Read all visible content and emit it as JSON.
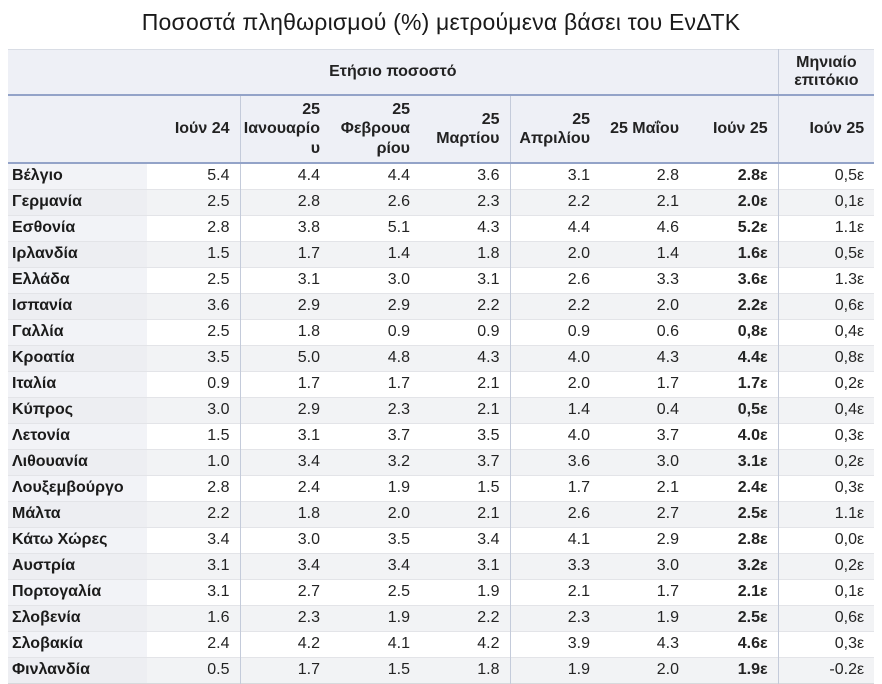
{
  "title": "Ποσοστά πληθωρισμού (%) μετρούμενα βάσει του ΕνΔΤΚ",
  "colors": {
    "header_bg": "#eef0f6",
    "blue_rule": "#93a3c8",
    "group_separator": "#c4cbda",
    "row_stripe": "#f2f3f5",
    "row_header_bg": "#f2f3f7"
  },
  "chart_data": {
    "type": "table",
    "title": "Ποσοστά πληθωρισμού (%) μετρούμενα βάσει του ΕνΔΤΚ",
    "group_headers": [
      "Ετήσιο ποσοστό",
      "Μηνιαίο επιτόκιο"
    ],
    "columns": [
      "Ιούν 24",
      "25 Ιανουαρίου",
      "25 Φεβρουαρίου",
      "25 Μαρτίου",
      "25 Απριλίου",
      "25 Μαΐου",
      "Ιούν 25"
    ],
    "monthly_column": "Ιούν 25",
    "rows": [
      {
        "country": "Βέλγιο",
        "annual": [
          "5.4",
          "4.4",
          "4.4",
          "3.6",
          "3.1",
          "2.8",
          "2.8ε"
        ],
        "monthly": "0,5ε"
      },
      {
        "country": "Γερμανία",
        "annual": [
          "2.5",
          "2.8",
          "2.6",
          "2.3",
          "2.2",
          "2.1",
          "2.0ε"
        ],
        "monthly": "0,1ε"
      },
      {
        "country": "Εσθονία",
        "annual": [
          "2.8",
          "3.8",
          "5.1",
          "4.3",
          "4.4",
          "4.6",
          "5.2ε"
        ],
        "monthly": "1.1ε"
      },
      {
        "country": "Ιρλανδία",
        "annual": [
          "1.5",
          "1.7",
          "1.4",
          "1.8",
          "2.0",
          "1.4",
          "1.6ε"
        ],
        "monthly": "0,5ε"
      },
      {
        "country": "Ελλάδα",
        "annual": [
          "2.5",
          "3.1",
          "3.0",
          "3.1",
          "2.6",
          "3.3",
          "3.6ε"
        ],
        "monthly": "1.3ε"
      },
      {
        "country": "Ισπανία",
        "annual": [
          "3.6",
          "2.9",
          "2.9",
          "2.2",
          "2.2",
          "2.0",
          "2.2ε"
        ],
        "monthly": "0,6ε"
      },
      {
        "country": "Γαλλία",
        "annual": [
          "2.5",
          "1.8",
          "0.9",
          "0.9",
          "0.9",
          "0.6",
          "0,8ε"
        ],
        "monthly": "0,4ε"
      },
      {
        "country": "Κροατία",
        "annual": [
          "3.5",
          "5.0",
          "4.8",
          "4.3",
          "4.0",
          "4.3",
          "4.4ε"
        ],
        "monthly": "0,8ε"
      },
      {
        "country": "Ιταλία",
        "annual": [
          "0.9",
          "1.7",
          "1.7",
          "2.1",
          "2.0",
          "1.7",
          "1.7ε"
        ],
        "monthly": "0,2ε"
      },
      {
        "country": "Κύπρος",
        "annual": [
          "3.0",
          "2.9",
          "2.3",
          "2.1",
          "1.4",
          "0.4",
          "0,5ε"
        ],
        "monthly": "0,4ε"
      },
      {
        "country": "Λετονία",
        "annual": [
          "1.5",
          "3.1",
          "3.7",
          "3.5",
          "4.0",
          "3.7",
          "4.0ε"
        ],
        "monthly": "0,3ε"
      },
      {
        "country": "Λιθουανία",
        "annual": [
          "1.0",
          "3.4",
          "3.2",
          "3.7",
          "3.6",
          "3.0",
          "3.1ε"
        ],
        "monthly": "0,2ε"
      },
      {
        "country": "Λουξεμβούργο",
        "annual": [
          "2.8",
          "2.4",
          "1.9",
          "1.5",
          "1.7",
          "2.1",
          "2.4ε"
        ],
        "monthly": "0,3ε"
      },
      {
        "country": "Μάλτα",
        "annual": [
          "2.2",
          "1.8",
          "2.0",
          "2.1",
          "2.6",
          "2.7",
          "2.5ε"
        ],
        "monthly": "1.1ε"
      },
      {
        "country": "Κάτω Χώρες",
        "annual": [
          "3.4",
          "3.0",
          "3.5",
          "3.4",
          "4.1",
          "2.9",
          "2.8ε"
        ],
        "monthly": "0,0ε"
      },
      {
        "country": "Αυστρία",
        "annual": [
          "3.1",
          "3.4",
          "3.4",
          "3.1",
          "3.3",
          "3.0",
          "3.2ε"
        ],
        "monthly": "0,2ε"
      },
      {
        "country": "Πορτογαλία",
        "annual": [
          "3.1",
          "2.7",
          "2.5",
          "1.9",
          "2.1",
          "1.7",
          "2.1ε"
        ],
        "monthly": "0,1ε"
      },
      {
        "country": "Σλοβενία",
        "annual": [
          "1.6",
          "2.3",
          "1.9",
          "2.2",
          "2.3",
          "1.9",
          "2.5ε"
        ],
        "monthly": "0,6ε"
      },
      {
        "country": "Σλοβακία",
        "annual": [
          "2.4",
          "4.2",
          "4.1",
          "4.2",
          "3.9",
          "4.3",
          "4.6ε"
        ],
        "monthly": "0,3ε"
      },
      {
        "country": "Φινλανδία",
        "annual": [
          "0.5",
          "1.7",
          "1.5",
          "1.8",
          "1.9",
          "2.0",
          "1.9ε"
        ],
        "monthly": "-0.2ε"
      }
    ]
  }
}
